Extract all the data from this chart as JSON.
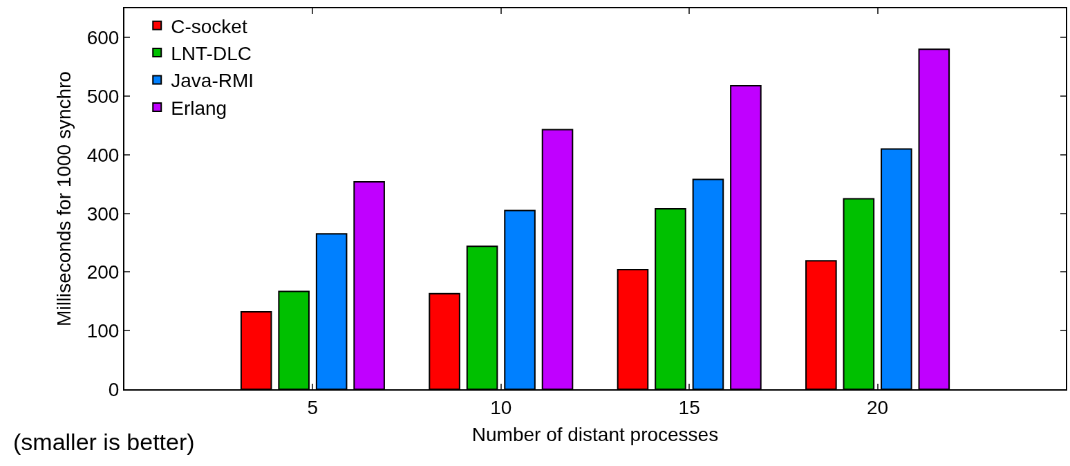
{
  "chart_data": {
    "type": "bar",
    "xlabel": "Number of distant processes",
    "ylabel": "Milliseconds for 1000 synchro",
    "x": [
      5,
      10,
      15,
      20
    ],
    "xlim": [
      0,
      25
    ],
    "xticks": [
      5,
      10,
      15,
      20
    ],
    "ylim": [
      0,
      650
    ],
    "yticks": [
      0,
      100,
      200,
      300,
      400,
      500,
      600
    ],
    "series": [
      {
        "name": "C-socket",
        "color": "#ff0000",
        "values": [
          132,
          163,
          204,
          219
        ]
      },
      {
        "name": "LNT-DLC",
        "color": "#00c000",
        "values": [
          167,
          244,
          308,
          325
        ]
      },
      {
        "name": "Java-RMI",
        "color": "#0080ff",
        "values": [
          265,
          305,
          358,
          410
        ]
      },
      {
        "name": "Erlang",
        "color": "#c000ff",
        "values": [
          354,
          443,
          518,
          580
        ]
      }
    ],
    "legend": "top left",
    "annotations": [
      "(smaller is better)"
    ]
  }
}
